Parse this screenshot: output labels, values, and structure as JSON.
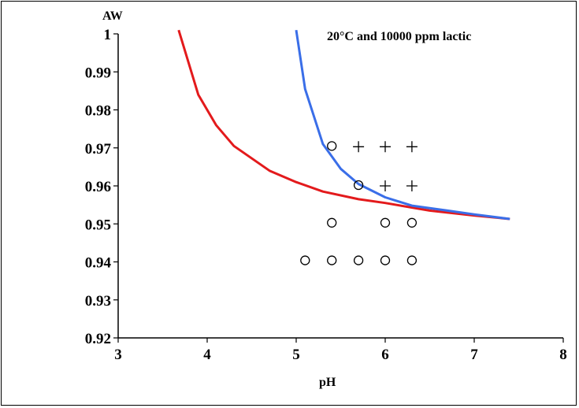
{
  "chart_data": {
    "type": "line",
    "title": "20°C and 10000 ppm lactic",
    "xlabel": "pH",
    "ylabel": "AW",
    "xlim": [
      3,
      8
    ],
    "ylim": [
      0.92,
      1.0
    ],
    "x_ticks": [
      "3",
      "4",
      "5",
      "6",
      "7",
      "8"
    ],
    "y_ticks": [
      "0.92",
      "0.93",
      "0.94",
      "0.95",
      "0.96",
      "0.97",
      "0.98",
      "0.99",
      "1"
    ],
    "grid": false,
    "legend": "none",
    "series": [
      {
        "color": "#e31a1c",
        "kind": "line",
        "points": [
          [
            3.68,
            1.001
          ],
          [
            3.9,
            0.984
          ],
          [
            4.1,
            0.976
          ],
          [
            4.3,
            0.9705
          ],
          [
            4.7,
            0.964
          ],
          [
            5.0,
            0.961
          ],
          [
            5.3,
            0.9585
          ],
          [
            5.7,
            0.9565
          ],
          [
            6.0,
            0.9555
          ],
          [
            6.5,
            0.9535
          ],
          [
            7.0,
            0.9522
          ],
          [
            7.4,
            0.9513
          ]
        ]
      },
      {
        "color": "#3a6ee8",
        "kind": "line",
        "points": [
          [
            5.0,
            1.001
          ],
          [
            5.1,
            0.9855
          ],
          [
            5.3,
            0.971
          ],
          [
            5.5,
            0.9645
          ],
          [
            5.7,
            0.9605
          ],
          [
            6.0,
            0.957
          ],
          [
            6.3,
            0.9548
          ],
          [
            6.7,
            0.9535
          ],
          [
            7.0,
            0.9525
          ],
          [
            7.4,
            0.9513
          ]
        ]
      }
    ],
    "markers": [
      {
        "symbol": "circle",
        "points": [
          [
            5.4,
            0.9705
          ],
          [
            5.7,
            0.9602
          ],
          [
            5.4,
            0.9503
          ],
          [
            6.0,
            0.9503
          ],
          [
            6.3,
            0.9503
          ],
          [
            5.1,
            0.9404
          ],
          [
            5.4,
            0.9404
          ],
          [
            5.7,
            0.9404
          ],
          [
            6.0,
            0.9404
          ],
          [
            6.3,
            0.9404
          ]
        ]
      },
      {
        "symbol": "plus",
        "points": [
          [
            5.7,
            0.9703
          ],
          [
            6.0,
            0.9703
          ],
          [
            6.3,
            0.9703
          ],
          [
            6.0,
            0.96
          ],
          [
            6.3,
            0.96
          ]
        ]
      }
    ]
  }
}
